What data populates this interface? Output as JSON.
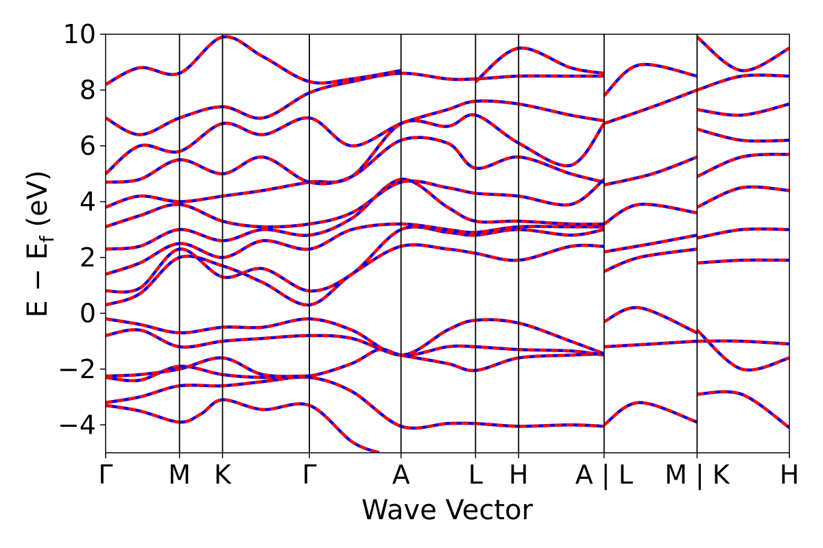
{
  "chart_data": {
    "type": "line",
    "title": "",
    "xlabel": "Wave Vector",
    "ylabel_parts": {
      "main": "E − E",
      "sub": "f",
      "unit": " (eV)"
    },
    "ylim": [
      -5,
      10
    ],
    "xlim": [
      0,
      1
    ],
    "grid": false,
    "legend": "none",
    "yticks": [
      {
        "value": 10,
        "label": "10"
      },
      {
        "value": 8,
        "label": "8"
      },
      {
        "value": 6,
        "label": "6"
      },
      {
        "value": 4,
        "label": "4"
      },
      {
        "value": 2,
        "label": "2"
      },
      {
        "value": 0,
        "label": "0"
      },
      {
        "value": -2,
        "label": "−2"
      },
      {
        "value": -4,
        "label": "−4"
      }
    ],
    "kpoints": [
      {
        "x": 0.0,
        "label": "Γ"
      },
      {
        "x": 0.108,
        "label": "M"
      },
      {
        "x": 0.171,
        "label": "K"
      },
      {
        "x": 0.298,
        "label": "Γ"
      },
      {
        "x": 0.432,
        "label": "A"
      },
      {
        "x": 0.541,
        "label": "L"
      },
      {
        "x": 0.604,
        "label": "H"
      },
      {
        "x": 0.729,
        "label": "A | L"
      },
      {
        "x": 0.865,
        "label": "M | K"
      },
      {
        "x": 1.0,
        "label": "H"
      }
    ],
    "series_style": [
      {
        "color": "#0000ff",
        "dash": ""
      },
      {
        "color": "#ff0000",
        "dash": "10,7"
      }
    ],
    "bands": [
      [
        [
          0.0,
          -3.3
        ],
        [
          0.05,
          -3.5
        ],
        [
          0.108,
          -3.9
        ],
        [
          0.14,
          -3.6
        ],
        [
          0.171,
          -3.1
        ],
        [
          0.23,
          -3.45
        ],
        [
          0.298,
          -3.3
        ],
        [
          0.36,
          -4.6
        ],
        [
          0.4,
          -5.0
        ]
      ],
      [
        [
          0.0,
          -3.2
        ],
        [
          0.05,
          -3.0
        ],
        [
          0.108,
          -2.6
        ],
        [
          0.171,
          -2.6
        ],
        [
          0.23,
          -2.45
        ],
        [
          0.298,
          -2.3
        ],
        [
          0.36,
          -2.8
        ],
        [
          0.432,
          -4.05
        ],
        [
          0.5,
          -3.95
        ],
        [
          0.541,
          -3.95
        ],
        [
          0.604,
          -4.05
        ],
        [
          0.68,
          -4.0
        ],
        [
          0.729,
          -4.05
        ]
      ],
      [
        [
          0.0,
          -2.3
        ],
        [
          0.05,
          -2.4
        ],
        [
          0.108,
          -1.9
        ],
        [
          0.171,
          -2.2
        ],
        [
          0.23,
          -2.3
        ],
        [
          0.298,
          -2.25
        ],
        [
          0.36,
          -1.8
        ],
        [
          0.4,
          -1.3
        ],
        [
          0.432,
          -1.5
        ],
        [
          0.5,
          -1.8
        ],
        [
          0.541,
          -2.05
        ],
        [
          0.604,
          -1.6
        ],
        [
          0.68,
          -1.5
        ],
        [
          0.729,
          -1.45
        ]
      ],
      [
        [
          0.0,
          -2.25
        ],
        [
          0.05,
          -2.2
        ],
        [
          0.108,
          -2.0
        ],
        [
          0.171,
          -1.6
        ],
        [
          0.23,
          -2.2
        ],
        [
          0.298,
          -2.25
        ]
      ],
      [
        [
          0.0,
          -0.8
        ],
        [
          0.05,
          -0.6
        ],
        [
          0.108,
          -1.2
        ],
        [
          0.171,
          -1.0
        ],
        [
          0.23,
          -0.9
        ],
        [
          0.298,
          -0.8
        ],
        [
          0.36,
          -0.9
        ],
        [
          0.432,
          -1.5
        ],
        [
          0.5,
          -1.2
        ],
        [
          0.541,
          -1.2
        ],
        [
          0.604,
          -1.3
        ],
        [
          0.68,
          -1.35
        ],
        [
          0.729,
          -1.5
        ]
      ],
      [
        [
          0.0,
          -0.2
        ],
        [
          0.05,
          -0.4
        ],
        [
          0.108,
          -0.7
        ],
        [
          0.171,
          -0.5
        ],
        [
          0.23,
          -0.5
        ],
        [
          0.298,
          -0.2
        ],
        [
          0.36,
          -0.6
        ],
        [
          0.432,
          -1.5
        ],
        [
          0.5,
          -0.6
        ],
        [
          0.541,
          -0.25
        ],
        [
          0.604,
          -0.35
        ],
        [
          0.68,
          -1.0
        ],
        [
          0.729,
          -1.45
        ]
      ],
      [
        [
          0.0,
          0.3
        ],
        [
          0.05,
          0.7
        ],
        [
          0.108,
          2.0
        ],
        [
          0.171,
          1.7
        ],
        [
          0.23,
          1.1
        ],
        [
          0.298,
          0.3
        ],
        [
          0.36,
          1.4
        ],
        [
          0.432,
          2.4
        ],
        [
          0.5,
          2.3
        ],
        [
          0.541,
          2.15
        ],
        [
          0.604,
          1.9
        ],
        [
          0.68,
          2.4
        ],
        [
          0.729,
          2.4
        ]
      ],
      [
        [
          0.0,
          0.8
        ],
        [
          0.05,
          0.9
        ],
        [
          0.108,
          2.3
        ],
        [
          0.171,
          1.3
        ],
        [
          0.23,
          1.6
        ],
        [
          0.298,
          0.8
        ],
        [
          0.36,
          1.4
        ],
        [
          0.432,
          3.0
        ],
        [
          0.5,
          2.9
        ],
        [
          0.541,
          2.8
        ],
        [
          0.604,
          3.0
        ],
        [
          0.68,
          2.8
        ],
        [
          0.729,
          3.0
        ]
      ],
      [
        [
          0.0,
          1.4
        ],
        [
          0.05,
          1.8
        ],
        [
          0.108,
          2.5
        ],
        [
          0.171,
          2.0
        ],
        [
          0.23,
          2.6
        ],
        [
          0.298,
          2.3
        ],
        [
          0.36,
          3.0
        ],
        [
          0.432,
          3.2
        ],
        [
          0.5,
          3.0
        ],
        [
          0.541,
          2.9
        ],
        [
          0.604,
          3.1
        ],
        [
          0.68,
          3.1
        ],
        [
          0.729,
          3.1
        ]
      ],
      [
        [
          0.0,
          2.3
        ],
        [
          0.05,
          2.4
        ],
        [
          0.108,
          3.0
        ],
        [
          0.171,
          2.6
        ],
        [
          0.23,
          3.0
        ],
        [
          0.298,
          2.8
        ],
        [
          0.36,
          3.4
        ],
        [
          0.432,
          4.8
        ],
        [
          0.5,
          3.8
        ],
        [
          0.541,
          3.3
        ],
        [
          0.604,
          3.3
        ],
        [
          0.68,
          3.2
        ],
        [
          0.729,
          3.2
        ]
      ],
      [
        [
          0.0,
          3.1
        ],
        [
          0.05,
          3.5
        ],
        [
          0.108,
          3.9
        ],
        [
          0.171,
          3.3
        ],
        [
          0.23,
          3.1
        ],
        [
          0.298,
          3.2
        ],
        [
          0.36,
          3.6
        ],
        [
          0.432,
          4.7
        ],
        [
          0.5,
          4.5
        ],
        [
          0.541,
          4.3
        ],
        [
          0.604,
          4.2
        ],
        [
          0.68,
          3.9
        ],
        [
          0.729,
          4.8
        ]
      ],
      [
        [
          0.0,
          3.8
        ],
        [
          0.05,
          4.2
        ],
        [
          0.108,
          4.0
        ],
        [
          0.171,
          4.2
        ],
        [
          0.23,
          4.4
        ],
        [
          0.298,
          4.7
        ],
        [
          0.36,
          4.9
        ],
        [
          0.432,
          6.8
        ],
        [
          0.5,
          6.7
        ],
        [
          0.541,
          7.1
        ],
        [
          0.604,
          6.1
        ],
        [
          0.68,
          5.3
        ],
        [
          0.729,
          6.8
        ]
      ],
      [
        [
          0.0,
          4.7
        ],
        [
          0.05,
          4.8
        ],
        [
          0.108,
          5.5
        ],
        [
          0.171,
          5.0
        ],
        [
          0.23,
          5.6
        ],
        [
          0.298,
          4.7
        ],
        [
          0.36,
          4.9
        ],
        [
          0.432,
          6.2
        ],
        [
          0.5,
          6.1
        ],
        [
          0.541,
          5.2
        ],
        [
          0.604,
          5.6
        ],
        [
          0.68,
          5.0
        ],
        [
          0.729,
          4.7
        ]
      ],
      [
        [
          0.0,
          5.0
        ],
        [
          0.05,
          6.0
        ],
        [
          0.108,
          5.8
        ],
        [
          0.171,
          6.8
        ],
        [
          0.23,
          6.4
        ],
        [
          0.298,
          7.0
        ],
        [
          0.36,
          6.0
        ],
        [
          0.432,
          6.8
        ],
        [
          0.5,
          7.3
        ],
        [
          0.541,
          7.6
        ],
        [
          0.604,
          7.5
        ],
        [
          0.68,
          7.1
        ],
        [
          0.729,
          6.9
        ]
      ],
      [
        [
          0.0,
          7.0
        ],
        [
          0.05,
          6.4
        ],
        [
          0.108,
          7.0
        ],
        [
          0.171,
          7.4
        ],
        [
          0.23,
          7.0
        ],
        [
          0.298,
          7.9
        ],
        [
          0.36,
          8.3
        ],
        [
          0.432,
          8.6
        ],
        [
          0.5,
          8.4
        ],
        [
          0.541,
          8.4
        ],
        [
          0.604,
          8.5
        ],
        [
          0.68,
          8.5
        ],
        [
          0.729,
          8.5
        ]
      ],
      [
        [
          0.0,
          8.2
        ],
        [
          0.05,
          8.8
        ],
        [
          0.108,
          8.6
        ],
        [
          0.171,
          9.9
        ],
        [
          0.23,
          9.2
        ],
        [
          0.298,
          8.3
        ],
        [
          0.36,
          8.4
        ],
        [
          0.432,
          8.7
        ]
      ],
      [
        [
          0.541,
          8.3
        ],
        [
          0.604,
          9.5
        ],
        [
          0.68,
          8.8
        ],
        [
          0.729,
          8.6
        ]
      ],
      [
        [
          0.729,
          -4.0
        ],
        [
          0.78,
          -3.2
        ],
        [
          0.865,
          -3.9
        ]
      ],
      [
        [
          0.729,
          -1.2
        ],
        [
          0.8,
          -1.1
        ],
        [
          0.865,
          -1.0
        ]
      ],
      [
        [
          0.729,
          -0.3
        ],
        [
          0.78,
          0.2
        ],
        [
          0.865,
          -0.7
        ]
      ],
      [
        [
          0.729,
          1.5
        ],
        [
          0.78,
          2.0
        ],
        [
          0.865,
          2.3
        ]
      ],
      [
        [
          0.729,
          2.2
        ],
        [
          0.8,
          2.5
        ],
        [
          0.865,
          2.8
        ]
      ],
      [
        [
          0.729,
          3.2
        ],
        [
          0.78,
          3.9
        ],
        [
          0.865,
          3.6
        ]
      ],
      [
        [
          0.729,
          4.6
        ],
        [
          0.8,
          5.0
        ],
        [
          0.865,
          5.6
        ]
      ],
      [
        [
          0.729,
          6.8
        ],
        [
          0.8,
          7.4
        ],
        [
          0.865,
          8.0
        ]
      ],
      [
        [
          0.729,
          7.8
        ],
        [
          0.78,
          8.9
        ],
        [
          0.865,
          8.5
        ]
      ],
      [
        [
          0.865,
          -2.9
        ],
        [
          0.93,
          -2.9
        ],
        [
          1.0,
          -4.1
        ]
      ],
      [
        [
          0.865,
          -1.0
        ],
        [
          0.93,
          -1.0
        ],
        [
          1.0,
          -1.1
        ]
      ],
      [
        [
          0.865,
          -0.6
        ],
        [
          0.93,
          -2.0
        ],
        [
          1.0,
          -1.6
        ]
      ],
      [
        [
          0.865,
          1.8
        ],
        [
          0.93,
          1.9
        ],
        [
          1.0,
          1.9
        ]
      ],
      [
        [
          0.865,
          2.7
        ],
        [
          0.93,
          3.0
        ],
        [
          1.0,
          3.0
        ]
      ],
      [
        [
          0.865,
          3.8
        ],
        [
          0.93,
          4.5
        ],
        [
          1.0,
          4.4
        ]
      ],
      [
        [
          0.865,
          4.9
        ],
        [
          0.93,
          5.6
        ],
        [
          1.0,
          5.7
        ]
      ],
      [
        [
          0.865,
          6.6
        ],
        [
          0.93,
          6.2
        ],
        [
          1.0,
          6.2
        ]
      ],
      [
        [
          0.865,
          7.3
        ],
        [
          0.93,
          7.1
        ],
        [
          1.0,
          7.5
        ]
      ],
      [
        [
          0.865,
          8.0
        ],
        [
          0.93,
          8.5
        ],
        [
          1.0,
          8.5
        ]
      ],
      [
        [
          0.865,
          9.9
        ],
        [
          0.93,
          8.7
        ],
        [
          1.0,
          9.5
        ]
      ]
    ]
  }
}
